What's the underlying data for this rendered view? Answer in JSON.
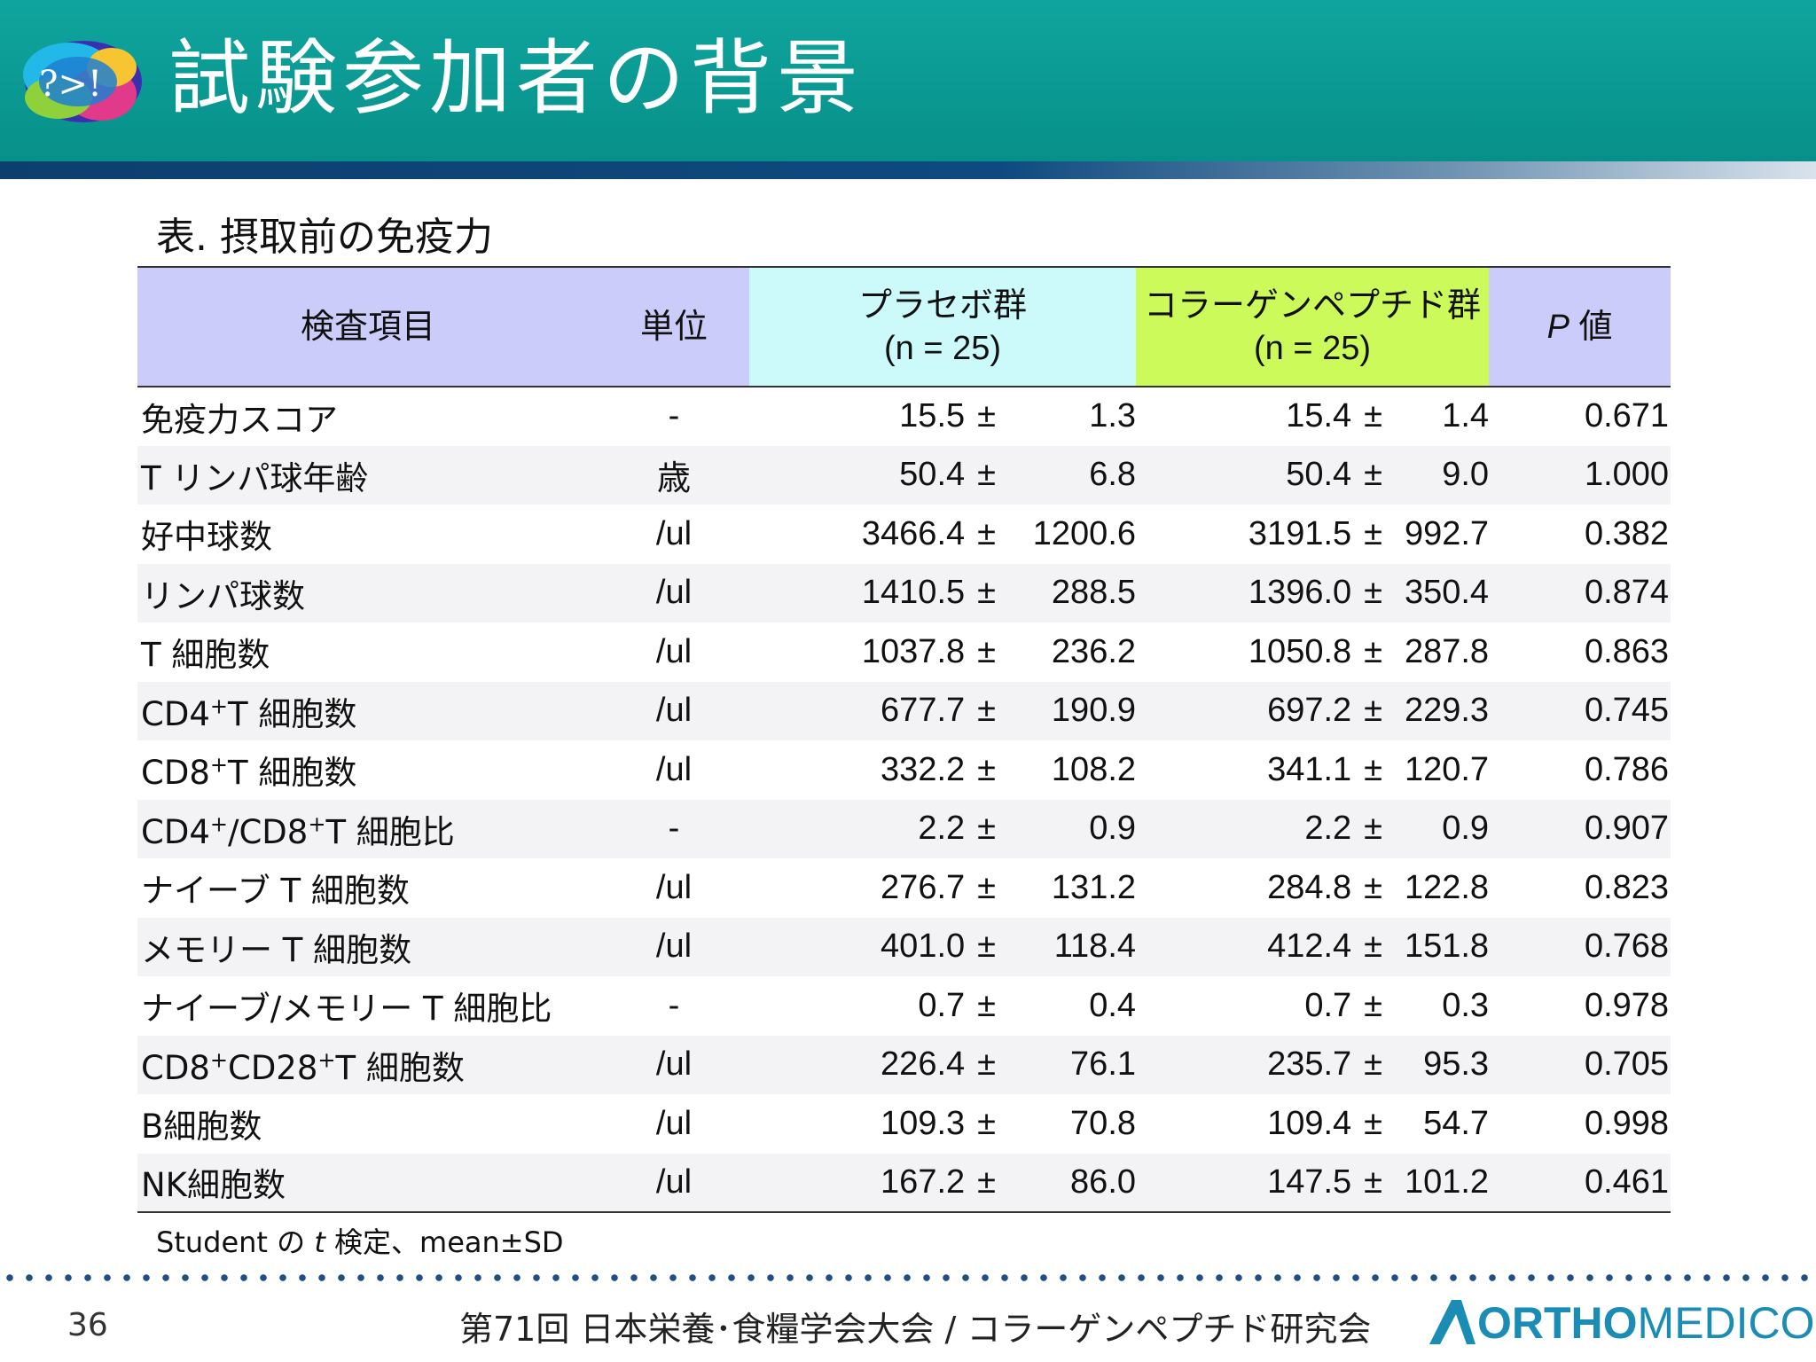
{
  "header": {
    "logo_text": "?>!",
    "title": "試験参加者の背景"
  },
  "caption": "表. 摂取前の免疫力",
  "table": {
    "headers": {
      "item": "検査項目",
      "unit": "単位",
      "placebo_line1": "プラセボ群",
      "placebo_line2": "(n = 25)",
      "collagen_line1": "コラーゲンペプチド群",
      "collagen_line2": "(n = 25)",
      "p_italic": "P",
      "p_rest": " 値"
    },
    "rows": [
      {
        "item": "免疫力スコア",
        "unit": "-",
        "pm": "15.5",
        "psd": "1.3",
        "cm": "15.4",
        "csd": "1.4",
        "p": "0.671"
      },
      {
        "item": "T リンパ球年齢",
        "unit": "歳",
        "pm": "50.4",
        "psd": "6.8",
        "cm": "50.4",
        "csd": "9.0",
        "p": "1.000"
      },
      {
        "item": "好中球数",
        "unit": "/ul",
        "pm": "3466.4",
        "psd": "1200.6",
        "cm": "3191.5",
        "csd": "992.7",
        "p": "0.382"
      },
      {
        "item": "リンパ球数",
        "unit": "/ul",
        "pm": "1410.5",
        "psd": "288.5",
        "cm": "1396.0",
        "csd": "350.4",
        "p": "0.874"
      },
      {
        "item": "T 細胞数",
        "unit": "/ul",
        "pm": "1037.8",
        "psd": "236.2",
        "cm": "1050.8",
        "csd": "287.8",
        "p": "0.863"
      },
      {
        "item_pre": "CD4",
        "item_sup1": "+",
        "item_post": "T 細胞数",
        "unit": "/ul",
        "pm": "677.7",
        "psd": "190.9",
        "cm": "697.2",
        "csd": "229.3",
        "p": "0.745"
      },
      {
        "item_pre": "CD8",
        "item_sup1": "+",
        "item_post": "T 細胞数",
        "unit": "/ul",
        "pm": "332.2",
        "psd": "108.2",
        "cm": "341.1",
        "csd": "120.7",
        "p": "0.786"
      },
      {
        "item_pre": "CD4",
        "item_sup1": "+",
        "item_mid": "/CD8",
        "item_sup2": "+",
        "item_post": "T 細胞比",
        "unit": "-",
        "pm": "2.2",
        "psd": "0.9",
        "cm": "2.2",
        "csd": "0.9",
        "p": "0.907"
      },
      {
        "item": "ナイーブ T 細胞数",
        "unit": "/ul",
        "pm": "276.7",
        "psd": "131.2",
        "cm": "284.8",
        "csd": "122.8",
        "p": "0.823"
      },
      {
        "item": "メモリー T 細胞数",
        "unit": "/ul",
        "pm": "401.0",
        "psd": "118.4",
        "cm": "412.4",
        "csd": "151.8",
        "p": "0.768"
      },
      {
        "item": "ナイーブ/メモリー T 細胞比",
        "unit": "-",
        "pm": "0.7",
        "psd": "0.4",
        "cm": "0.7",
        "csd": "0.3",
        "p": "0.978"
      },
      {
        "item_pre": "CD8",
        "item_sup1": "+",
        "item_mid": "CD28",
        "item_sup2": "+",
        "item_post": "T 細胞数",
        "unit": "/ul",
        "pm": "226.4",
        "psd": "76.1",
        "cm": "235.7",
        "csd": "95.3",
        "p": "0.705"
      },
      {
        "item": "B細胞数",
        "unit": "/ul",
        "pm": "109.3",
        "psd": "70.8",
        "cm": "109.4",
        "csd": "54.7",
        "p": "0.998"
      },
      {
        "item": "NK細胞数",
        "unit": "/ul",
        "pm": "167.2",
        "psd": "86.0",
        "cm": "147.5",
        "csd": "101.2",
        "p": "0.461"
      }
    ],
    "pm_symbol": "±"
  },
  "footnote": {
    "pre": "Student の ",
    "italic": "t",
    "post": " 検定、mean±SD"
  },
  "footer": {
    "page_number": "36",
    "event": "第71回 日本栄養･食糧学会大会 / コラーゲンペプチド研究会",
    "brand_bold": "ORTHO",
    "brand_light": "MEDICO"
  },
  "colors": {
    "header_teal": "#0fa59e",
    "stripe_navy": "#0d3f6e",
    "head_lavender": "#ccccfa",
    "head_cyan": "#ccfafa",
    "head_lime": "#ccfa5a",
    "brand_blue": "#1b8cb3"
  }
}
